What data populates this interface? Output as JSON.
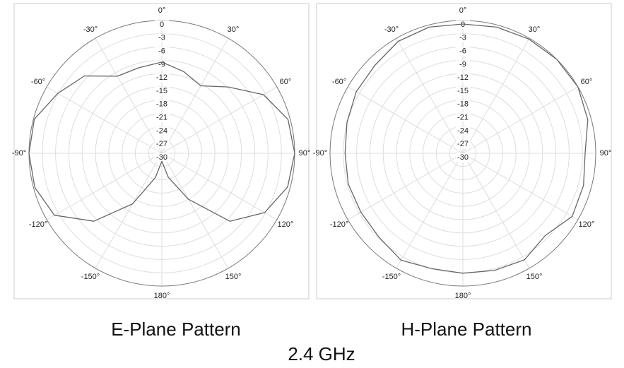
{
  "chart_data": [
    {
      "type": "polar",
      "title": "E-Plane Pattern",
      "theta": [
        -180,
        -165,
        -150,
        -135,
        -120,
        -105,
        -90,
        -75,
        -60,
        -45,
        -30,
        -15,
        0,
        15,
        30,
        45,
        60,
        75,
        90,
        105,
        120,
        135,
        150,
        165
      ],
      "series": [
        {
          "color": "#666666",
          "values": [
            -28.2,
            -24.3,
            -16.8,
            -8.3,
            -2,
            -0.3,
            0,
            -0.2,
            -2.9,
            -5.3,
            -9.9,
            -10,
            -9.4,
            -10.9,
            -12.4,
            -8.8,
            -3.5,
            -0.5,
            0,
            -0.6,
            -3.2,
            -8.3,
            -18,
            -24.4
          ]
        }
      ],
      "rlim": [
        -30,
        0
      ],
      "rticks": [
        0,
        -3,
        -6,
        -9,
        -12,
        -15,
        -18,
        -21,
        -24,
        -27,
        -30
      ],
      "thetaticks": [
        {
          "value": 0,
          "label": "0°"
        },
        {
          "value": 30,
          "label": "30°"
        },
        {
          "value": 60,
          "label": "60°"
        },
        {
          "value": 90,
          "label": "90°"
        },
        {
          "value": 120,
          "label": "120°"
        },
        {
          "value": 150,
          "label": "150°"
        },
        {
          "value": 180,
          "label": "180°"
        },
        {
          "value": -150,
          "label": "-150°"
        },
        {
          "value": -120,
          "label": "-120°"
        },
        {
          "value": -90,
          "label": "-90°"
        },
        {
          "value": -60,
          "label": "-60°"
        },
        {
          "value": -30,
          "label": "-30°"
        }
      ],
      "grid": true
    },
    {
      "type": "polar",
      "title": "H-Plane Pattern",
      "theta": [
        -180,
        -165,
        -150,
        -135,
        -120,
        -105,
        -90,
        -75,
        -60,
        -45,
        -30,
        -15,
        0,
        15,
        30,
        45,
        60,
        75,
        90,
        105,
        120,
        135,
        150,
        165
      ],
      "series": [
        {
          "color": "#666666",
          "values": [
            -2.9,
            -3,
            -2.1,
            -3.2,
            -3.4,
            -3.2,
            -3.4,
            -2.9,
            -2.2,
            -1.9,
            -0.8,
            -0.5,
            -0.8,
            -0.5,
            -0.2,
            0,
            0,
            -0.8,
            -2.4,
            -1.8,
            -1.5,
            -3.7,
            -2.2,
            -2.6
          ]
        }
      ],
      "rlim": [
        -30,
        0
      ],
      "rticks": [
        0,
        -3,
        -6,
        -9,
        -12,
        -15,
        -18,
        -21,
        -24,
        -27,
        -30
      ],
      "thetaticks": [
        {
          "value": 0,
          "label": "0°"
        },
        {
          "value": 30,
          "label": "30°"
        },
        {
          "value": 60,
          "label": "60°"
        },
        {
          "value": 90,
          "label": "90°"
        },
        {
          "value": 120,
          "label": "120°"
        },
        {
          "value": 150,
          "label": "150°"
        },
        {
          "value": 180,
          "label": "180°"
        },
        {
          "value": -150,
          "label": "-150°"
        },
        {
          "value": -120,
          "label": "-120°"
        },
        {
          "value": -90,
          "label": "-90°"
        },
        {
          "value": -60,
          "label": "-60°"
        },
        {
          "value": -30,
          "label": "-30°"
        }
      ],
      "grid": true
    }
  ],
  "footer": "2.4 GHz"
}
